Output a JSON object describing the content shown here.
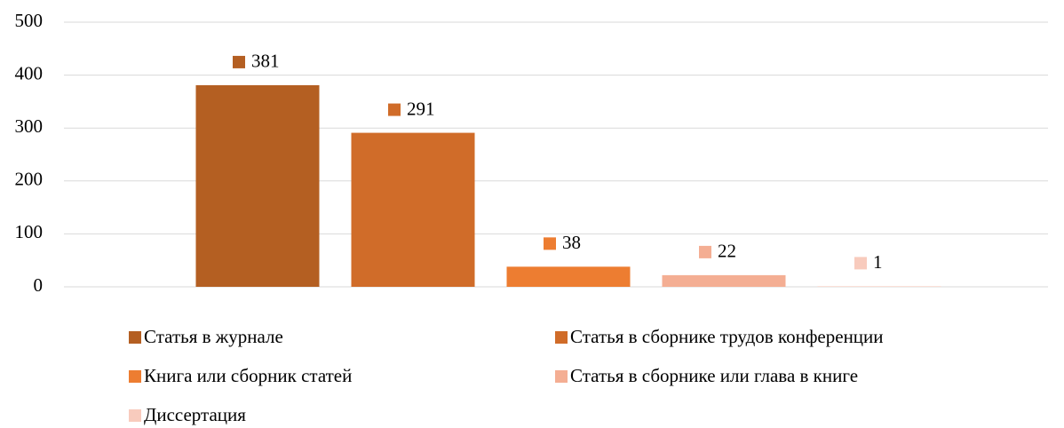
{
  "chart_data": {
    "type": "bar",
    "categories": [
      null
    ],
    "series": [
      {
        "name": "Статья в журнале",
        "color": "#b45f22",
        "values": [
          381
        ]
      },
      {
        "name": "Статья в сборнике трудов конференции",
        "color": "#d06c29",
        "values": [
          291
        ]
      },
      {
        "name": "Книга или сборник статей",
        "color": "#ed7d31",
        "values": [
          38
        ]
      },
      {
        "name": "Статья в сборнике или глава в книге",
        "color": "#f4ae93",
        "values": [
          22
        ]
      },
      {
        "name": "Диссертация",
        "color": "#f8cbbd",
        "values": [
          1
        ]
      }
    ],
    "ylim": [
      0,
      500
    ],
    "yticks": [
      0,
      100,
      200,
      300,
      400,
      500
    ],
    "grid": true,
    "legend": "bottom"
  }
}
